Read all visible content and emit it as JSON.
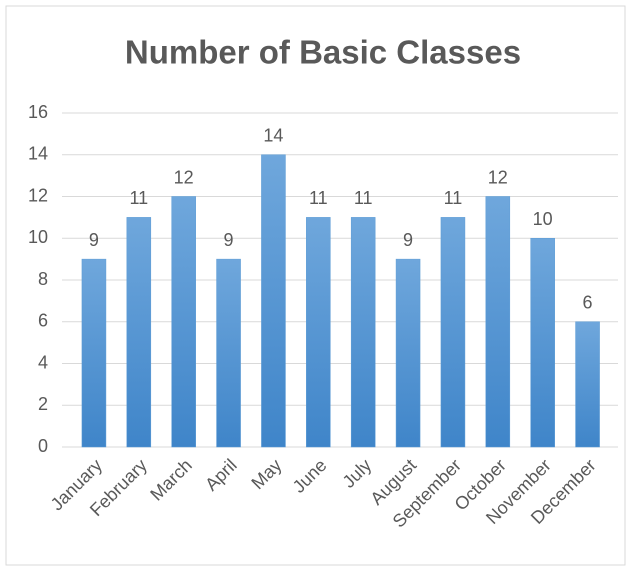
{
  "chart_data": {
    "type": "bar",
    "title": "Number of Basic Classes",
    "categories": [
      "January",
      "February",
      "March",
      "April",
      "May",
      "June",
      "July",
      "August",
      "September",
      "October",
      "November",
      "December"
    ],
    "values": [
      9,
      11,
      12,
      9,
      14,
      11,
      11,
      9,
      11,
      12,
      10,
      6
    ],
    "color": "#5b9bd5",
    "ylim": [
      0,
      16
    ],
    "yticks": [
      0,
      2,
      4,
      6,
      8,
      10,
      12,
      14,
      16
    ],
    "grid": true,
    "data_labels": true
  }
}
